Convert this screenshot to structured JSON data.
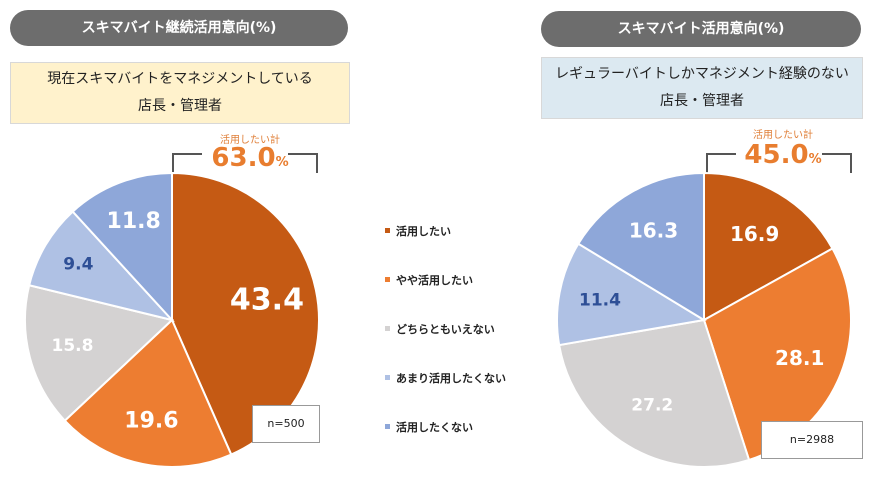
{
  "colors": {
    "dark_orange": "#c55a14",
    "orange": "#ed7d31",
    "light_gray": "#d4d2d2",
    "light_blue": "#afc1e4",
    "blue": "#8ea7d9",
    "label_blue": "#2e4f96"
  },
  "legend": [
    {
      "label": "活用したい",
      "color": "#c55a14"
    },
    {
      "label": "やや活用したい",
      "color": "#ed7d31"
    },
    {
      "label": "どちらともいえない",
      "color": "#d4d2d2"
    },
    {
      "label": "あまり活用したくない",
      "color": "#afc1e4"
    },
    {
      "label": "活用したくない",
      "color": "#8ea7d9"
    }
  ],
  "chart_data": [
    {
      "type": "pie",
      "title": "スキマバイト継続活用意向(%)",
      "subtitle_lines": [
        "現在スキマバイトをマネジメントしている",
        "店長・管理者"
      ],
      "total_label": "活用したい計",
      "total_value": "63.0",
      "total_unit": "%",
      "n_label": "n=500",
      "categories": [
        "活用したい",
        "やや活用したい",
        "どちらともいえない",
        "あまり活用したくない",
        "活用したくない"
      ],
      "values": [
        43.4,
        19.6,
        15.8,
        9.4,
        11.8
      ],
      "value_labels": [
        "43.4",
        "19.6",
        "15.8",
        "9.4",
        "11.8"
      ]
    },
    {
      "type": "pie",
      "title": "スキマバイト活用意向(%)",
      "subtitle_lines": [
        "レギュラーバイトしかマネジメント経験のない",
        "店長・管理者"
      ],
      "total_label": "活用したい計",
      "total_value": "45.0",
      "total_unit": "%",
      "n_label": "n=2988",
      "categories": [
        "活用したい",
        "やや活用したい",
        "どちらともいえない",
        "あまり活用したくない",
        "活用したくない"
      ],
      "values": [
        16.9,
        28.1,
        27.2,
        11.4,
        16.3
      ],
      "value_labels": [
        "16.9",
        "28.1",
        "27.2",
        "11.4",
        "16.3"
      ]
    }
  ]
}
